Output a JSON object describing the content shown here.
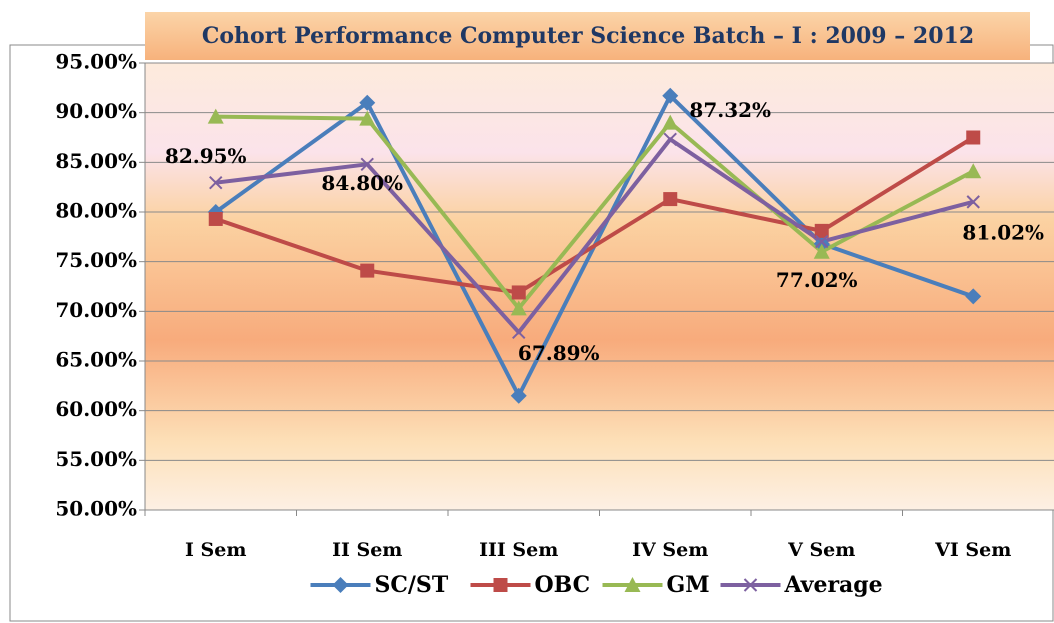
{
  "chart_data": {
    "type": "line",
    "title": "Cohort Performance  Computer Science  Batch – I : 2009 – 2012",
    "categories": [
      "I Sem",
      "II Sem",
      "III Sem",
      "IV Sem",
      "V Sem",
      "VI Sem"
    ],
    "series": [
      {
        "name": "SC/ST",
        "color": "#4a7ebb",
        "marker": "diamond",
        "values": [
          80.0,
          91.0,
          61.5,
          91.7,
          76.8,
          71.5
        ]
      },
      {
        "name": "OBC",
        "color": "#be4b48",
        "marker": "square",
        "values": [
          79.3,
          74.1,
          71.9,
          81.3,
          78.1,
          87.5
        ]
      },
      {
        "name": "GM",
        "color": "#98b954",
        "marker": "triangle",
        "values": [
          89.6,
          89.4,
          70.3,
          89.0,
          76.0,
          84.1
        ]
      },
      {
        "name": "Average",
        "color": "#7d60a0",
        "marker": "x",
        "values": [
          82.95,
          84.8,
          67.89,
          87.32,
          77.02,
          81.02
        ],
        "value_labels": [
          "82.95%",
          "84.80%",
          "67.89%",
          "87.32%",
          "77.02%",
          "81.02%"
        ]
      }
    ],
    "ylim": [
      50,
      95
    ],
    "yticks": [
      {
        "value": 50,
        "label": "50.00%"
      },
      {
        "value": 55,
        "label": "55.00%"
      },
      {
        "value": 60,
        "label": "60.00%"
      },
      {
        "value": 65,
        "label": "65.00%"
      },
      {
        "value": 70,
        "label": "70.00%"
      },
      {
        "value": 75,
        "label": "75.00%"
      },
      {
        "value": 80,
        "label": "80.00%"
      },
      {
        "value": 85,
        "label": "85.00%"
      },
      {
        "value": 90,
        "label": "90.00%"
      },
      {
        "value": 95,
        "label": "95.00%"
      }
    ],
    "grid": true,
    "legend": "bottom"
  }
}
